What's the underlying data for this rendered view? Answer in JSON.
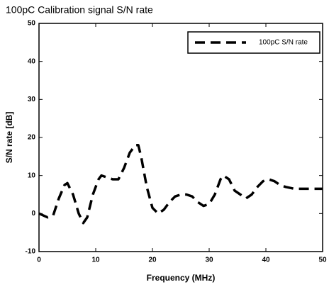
{
  "chart_data": {
    "type": "line",
    "title": "100pC Calibration signal S/N rate",
    "x_label": "Frequency (MHz)",
    "y_label": "S/N rate [dB]",
    "x": [
      0,
      1.5,
      2.5,
      3.5,
      4.5,
      5,
      6,
      7,
      7.8,
      8.5,
      9.5,
      10.5,
      11,
      12,
      13,
      14,
      15,
      16,
      17,
      17.5,
      18,
      19,
      20,
      21,
      22,
      23,
      24,
      25,
      26,
      27,
      28,
      29,
      30,
      31,
      32,
      32.5,
      33.5,
      34.5,
      35.5,
      36.5,
      37.5,
      38.5,
      39.5,
      40.5,
      41.5,
      42.5,
      43.5,
      45,
      47,
      50
    ],
    "series": [
      {
        "name": "100pC S/N rate",
        "color": "#000000",
        "values": [
          0,
          -1,
          -0.5,
          4,
          7.5,
          8,
          5,
          0,
          -2.5,
          -1,
          5,
          9,
          10,
          9.5,
          9,
          9,
          12,
          16,
          18,
          18,
          15,
          7,
          1.5,
          0,
          1,
          3,
          4.5,
          5,
          5,
          4.5,
          3,
          2,
          2.5,
          5,
          9,
          10,
          9,
          6,
          5,
          4,
          5,
          7,
          8.5,
          9,
          8.5,
          7.5,
          7,
          6.5,
          6.5,
          6.5
        ]
      }
    ],
    "xlim": [
      0,
      50
    ],
    "xticks": [
      0,
      10,
      20,
      30,
      40,
      50
    ],
    "ylim": [
      -10,
      50
    ],
    "yticks": [
      -10,
      0,
      10,
      20,
      30,
      40,
      50
    ],
    "legend": "upper right",
    "grid": false
  }
}
